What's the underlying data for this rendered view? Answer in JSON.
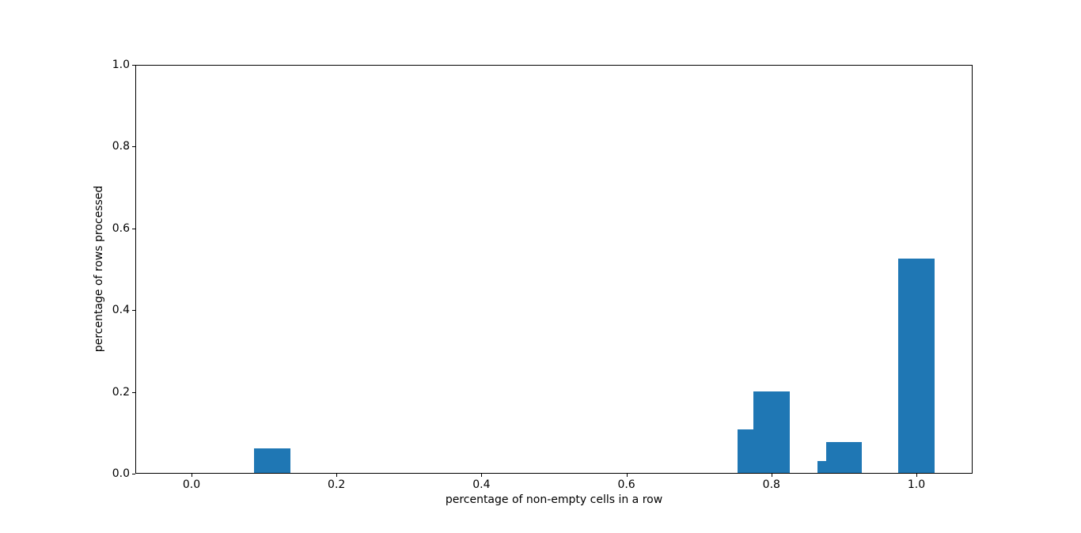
{
  "chart_data": {
    "type": "bar",
    "title": "",
    "xlabel": "percentage of non-empty cells in a row",
    "ylabel": "percentage of rows processed",
    "x": [
      0.111,
      0.778,
      0.8,
      0.889,
      0.9,
      1.0
    ],
    "values": [
      0.06,
      0.106,
      0.2,
      0.03,
      0.075,
      0.525
    ],
    "bar_width": 0.05,
    "bar_color": "#1f77b4",
    "xlim": [
      -0.0775,
      1.0775
    ],
    "ylim": [
      0,
      1.0
    ],
    "xticks": {
      "values": [
        0.0,
        0.2,
        0.4,
        0.6,
        0.8,
        1.0
      ],
      "labels": [
        "0.0",
        "0.2",
        "0.4",
        "0.6",
        "0.8",
        "1.0"
      ]
    },
    "yticks": {
      "values": [
        0.0,
        0.2,
        0.4,
        0.6,
        0.8,
        1.0
      ],
      "labels": [
        "0.0",
        "0.2",
        "0.4",
        "0.6",
        "0.8",
        "1.0"
      ]
    },
    "grid": false,
    "legend": null,
    "spine_color": "#000000",
    "background": "#ffffff"
  }
}
